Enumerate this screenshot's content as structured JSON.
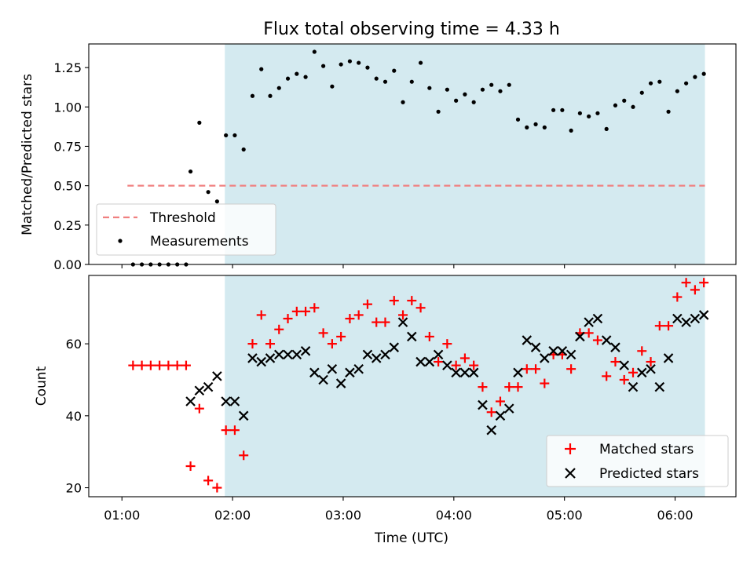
{
  "chart_data": [
    {
      "type": "scatter",
      "title": "Flux total observing time = 4.33 h",
      "ylabel": "Matched/Predicted stars",
      "xlabel": "",
      "xlim_hours": [
        0.7,
        6.55
      ],
      "ylim": [
        0,
        1.4
      ],
      "yticks": [
        0.0,
        0.25,
        0.5,
        0.75,
        1.0,
        1.25
      ],
      "ytick_labels": [
        "0.00",
        "0.25",
        "0.50",
        "0.75",
        "1.00",
        "1.25"
      ],
      "shaded_interval_hours": [
        1.93,
        6.27
      ],
      "shade_color": "#d4eaf0",
      "threshold": {
        "name": "Threshold",
        "value": 0.5,
        "x_range_hours": [
          1.05,
          6.27
        ],
        "color": "#f08080"
      },
      "legend": {
        "position": "lower-left",
        "entries": [
          "Threshold",
          "Measurements"
        ]
      },
      "series": [
        {
          "name": "Measurements",
          "color": "#000000",
          "marker": "dot",
          "x": [
            1.1,
            1.18,
            1.26,
            1.34,
            1.42,
            1.5,
            1.58,
            1.62,
            1.7,
            1.78,
            1.86,
            1.94,
            2.02,
            2.1,
            2.18,
            2.26,
            2.34,
            2.42,
            2.5,
            2.58,
            2.66,
            2.74,
            2.82,
            2.9,
            2.98,
            3.06,
            3.14,
            3.22,
            3.3,
            3.38,
            3.46,
            3.54,
            3.62,
            3.7,
            3.78,
            3.86,
            3.94,
            4.02,
            4.1,
            4.18,
            4.26,
            4.34,
            4.42,
            4.5,
            4.58,
            4.66,
            4.74,
            4.82,
            4.9,
            4.98,
            5.06,
            5.14,
            5.22,
            5.3,
            5.38,
            5.46,
            5.54,
            5.62,
            5.7,
            5.78,
            5.86,
            5.94,
            6.02,
            6.1,
            6.18,
            6.26
          ],
          "y": [
            0,
            0,
            0,
            0,
            0,
            0,
            0,
            0.59,
            0.9,
            0.46,
            0.4,
            0.82,
            0.82,
            0.73,
            1.07,
            1.24,
            1.07,
            1.12,
            1.18,
            1.21,
            1.19,
            1.35,
            1.26,
            1.13,
            1.27,
            1.29,
            1.28,
            1.25,
            1.18,
            1.16,
            1.23,
            1.03,
            1.16,
            1.28,
            1.12,
            0.97,
            1.11,
            1.04,
            1.08,
            1.03,
            1.11,
            1.14,
            1.1,
            1.14,
            0.92,
            0.87,
            0.89,
            0.87,
            0.98,
            0.98,
            0.85,
            0.96,
            0.94,
            0.96,
            0.86,
            1.01,
            1.04,
            1.0,
            1.09,
            1.15,
            1.16,
            0.97,
            1.1,
            1.15,
            1.19,
            1.21
          ]
        }
      ]
    },
    {
      "type": "scatter",
      "title": "",
      "xlabel": "Time (UTC)",
      "ylabel": "Count",
      "xlim_hours": [
        0.7,
        6.55
      ],
      "ylim": [
        17.5,
        79
      ],
      "xticks_hours": [
        1,
        2,
        3,
        4,
        5,
        6
      ],
      "xtick_labels": [
        "01:00",
        "02:00",
        "03:00",
        "04:00",
        "05:00",
        "06:00"
      ],
      "yticks": [
        20,
        40,
        60
      ],
      "ytick_labels": [
        "20",
        "40",
        "60"
      ],
      "shaded_interval_hours": [
        1.93,
        6.27
      ],
      "shade_color": "#d4eaf0",
      "legend": {
        "position": "lower-right",
        "entries": [
          "Matched stars",
          "Predicted stars"
        ]
      },
      "series": [
        {
          "name": "Matched stars",
          "color": "#ff0000",
          "marker": "plus",
          "x": [
            1.1,
            1.18,
            1.26,
            1.34,
            1.42,
            1.5,
            1.58,
            1.62,
            1.7,
            1.78,
            1.86,
            1.94,
            2.02,
            2.1,
            2.18,
            2.26,
            2.34,
            2.42,
            2.5,
            2.58,
            2.66,
            2.74,
            2.82,
            2.9,
            2.98,
            3.06,
            3.14,
            3.22,
            3.3,
            3.38,
            3.46,
            3.54,
            3.62,
            3.7,
            3.78,
            3.86,
            3.94,
            4.02,
            4.1,
            4.18,
            4.26,
            4.34,
            4.42,
            4.5,
            4.58,
            4.66,
            4.74,
            4.82,
            4.9,
            4.98,
            5.06,
            5.14,
            5.22,
            5.3,
            5.38,
            5.46,
            5.54,
            5.62,
            5.7,
            5.78,
            5.86,
            5.94,
            6.02,
            6.1,
            6.18,
            6.26
          ],
          "y": [
            54,
            54,
            54,
            54,
            54,
            54,
            54,
            26,
            42,
            22,
            20,
            36,
            36,
            29,
            60,
            68,
            60,
            64,
            67,
            69,
            69,
            70,
            63,
            60,
            62,
            67,
            68,
            71,
            66,
            66,
            72,
            68,
            72,
            70,
            62,
            55,
            60,
            54,
            56,
            54,
            48,
            41,
            44,
            48,
            48,
            53,
            53,
            49,
            57,
            57,
            53,
            63,
            63,
            61,
            51,
            55,
            50,
            52,
            58,
            55,
            65,
            65,
            73,
            77,
            75,
            77
          ]
        },
        {
          "name": "Predicted stars",
          "color": "#000000",
          "marker": "x",
          "x": [
            1.62,
            1.7,
            1.78,
            1.86,
            1.94,
            2.02,
            2.1,
            2.18,
            2.26,
            2.34,
            2.42,
            2.5,
            2.58,
            2.66,
            2.74,
            2.82,
            2.9,
            2.98,
            3.06,
            3.14,
            3.22,
            3.3,
            3.38,
            3.46,
            3.54,
            3.62,
            3.7,
            3.78,
            3.86,
            3.94,
            4.02,
            4.1,
            4.18,
            4.26,
            4.34,
            4.42,
            4.5,
            4.58,
            4.66,
            4.74,
            4.82,
            4.9,
            4.98,
            5.06,
            5.14,
            5.22,
            5.3,
            5.38,
            5.46,
            5.54,
            5.62,
            5.7,
            5.78,
            5.86,
            5.94,
            6.02,
            6.1,
            6.18,
            6.26
          ],
          "y": [
            44,
            47,
            48,
            51,
            44,
            44,
            40,
            56,
            55,
            56,
            57,
            57,
            57,
            58,
            52,
            50,
            53,
            49,
            52,
            53,
            57,
            56,
            57,
            59,
            66,
            62,
            55,
            55,
            57,
            54,
            52,
            52,
            52,
            43,
            36,
            40,
            42,
            52,
            61,
            59,
            56,
            58,
            58,
            57,
            62,
            66,
            67,
            61,
            59,
            54,
            48,
            52,
            53,
            48,
            56,
            67,
            66,
            67,
            68
          ]
        }
      ]
    }
  ]
}
